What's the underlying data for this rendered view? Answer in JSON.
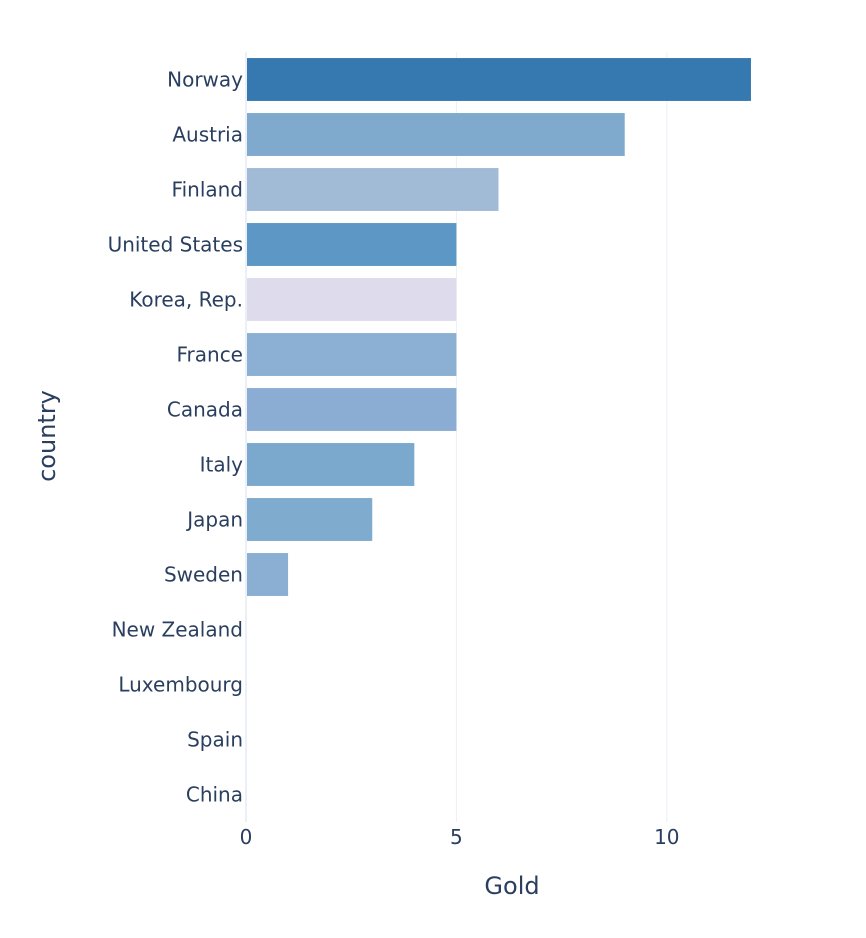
{
  "chart_data": {
    "type": "bar",
    "orientation": "horizontal",
    "title": "",
    "xlabel": "Gold",
    "ylabel": "country",
    "xlim": [
      0,
      12.5
    ],
    "xticks": [
      0,
      5,
      10
    ],
    "grid": "vertical",
    "legend": "none",
    "categories": [
      "Norway",
      "Austria",
      "Finland",
      "United States",
      "Korea, Rep.",
      "France",
      "Canada",
      "Italy",
      "Japan",
      "Sweden",
      "New Zealand",
      "Luxembourg",
      "Spain",
      "China"
    ],
    "values": [
      12,
      9,
      6,
      5,
      5,
      5,
      5,
      4,
      3,
      1,
      0,
      0,
      0,
      0
    ],
    "colors": [
      "#3679b0",
      "#7fa9cd",
      "#a1bad6",
      "#5d97c5",
      "#dedcec",
      "#8bb0d3",
      "#8cadd3",
      "#7ba9ce",
      "#7fabcf",
      "#8aafd3",
      "#8cadd3",
      "#a1bad6",
      "#7fabcf",
      "#3679b0"
    ]
  }
}
